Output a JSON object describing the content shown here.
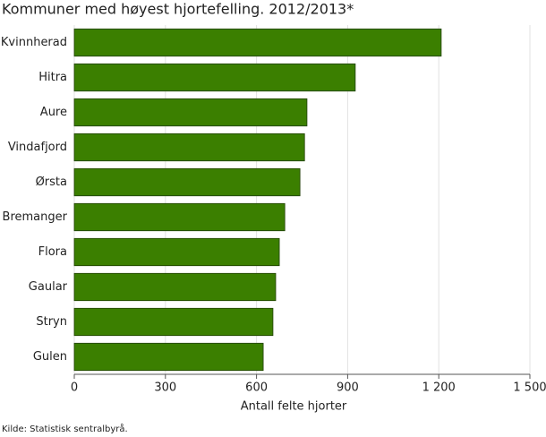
{
  "chart_data": {
    "type": "bar",
    "orientation": "horizontal",
    "title": "Kommuner med høyest hjortefelling. 2012/2013*",
    "x_label": "Antall felte hjorter",
    "source": "Kilde: Statistisk sentralbyrå.",
    "categories": [
      "Kvinnherad",
      "Hitra",
      "Aure",
      "Vindafjord",
      "Ørsta",
      "Bremanger",
      "Flora",
      "Gaular",
      "Stryn",
      "Gulen"
    ],
    "values": [
      1208,
      925,
      766,
      758,
      743,
      693,
      675,
      663,
      654,
      622
    ],
    "color": "#3b7f00",
    "xlim": [
      0,
      1500
    ],
    "xticks": [
      0,
      300,
      600,
      900,
      {
        "value": 1200,
        "label": "1 200"
      },
      {
        "value": 1500,
        "label": "1 500"
      }
    ],
    "grid": true
  }
}
